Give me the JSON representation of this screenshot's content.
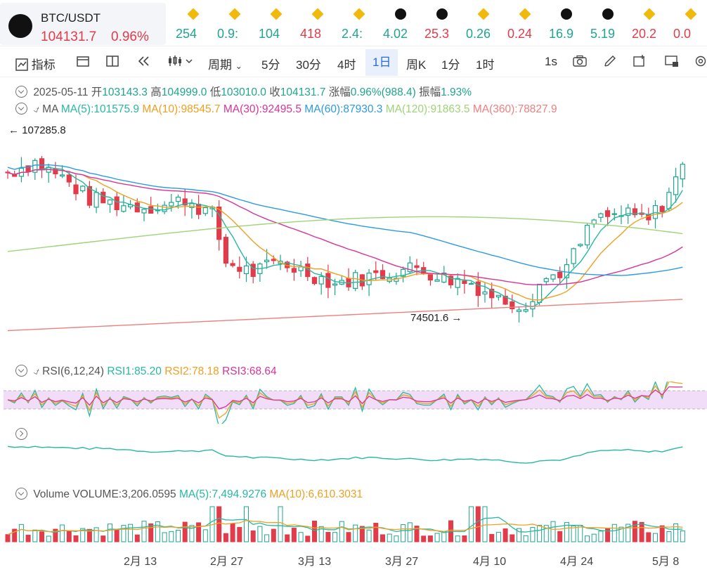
{
  "pair": {
    "symbol": "BTC/USDT",
    "price": "104131.7",
    "change": "0.96%"
  },
  "tickers": [
    {
      "icon": "bnb-icon",
      "value": "254",
      "color": "#1fa590"
    },
    {
      "icon": "bnb-icon",
      "value": "0.9:",
      "color": "#1fa590"
    },
    {
      "icon": "bnb-icon",
      "value": "104",
      "color": "#1fa590"
    },
    {
      "icon": "bnb-icon",
      "value": "418",
      "color": "#e23b4a"
    },
    {
      "icon": "bnb-icon",
      "value": "2.4:",
      "color": "#1fa590"
    },
    {
      "icon": "okx-icon",
      "value": "4.02",
      "color": "#1fa590"
    },
    {
      "icon": "okx-icon",
      "value": "25.3",
      "color": "#e23b4a"
    },
    {
      "icon": "bnb-icon",
      "value": "0.26",
      "color": "#1fa590"
    },
    {
      "icon": "bnb-icon",
      "value": "0.24",
      "color": "#e23b4a"
    },
    {
      "icon": "okx-icon",
      "value": "16.9",
      "color": "#1fa590"
    },
    {
      "icon": "okx-icon",
      "value": "5.19",
      "color": "#1fa590"
    },
    {
      "icon": "bnb-icon",
      "value": "20.2",
      "color": "#e23b4a"
    },
    {
      "icon": "bnb-icon",
      "value": "0.0",
      "color": "#e23b4a"
    }
  ],
  "toolbar": {
    "indicators": "指标",
    "period": "周期",
    "intervals": [
      "5分",
      "30分",
      "4时",
      "1日",
      "周K",
      "1分",
      "1时"
    ],
    "active_interval": "1日",
    "speed": "1s"
  },
  "info": {
    "date": "2025-05-11",
    "open_label": "开",
    "open": "103143.3",
    "high_label": "高",
    "high": "104999.0",
    "low_label": "低",
    "low": "103010.0",
    "close_label": "收",
    "close": "104131.7",
    "chg_label": "涨幅",
    "chg": "0.96%(988.4)",
    "amp_label": "振幅",
    "amp": "1.93%"
  },
  "ma": {
    "label": "MA",
    "items": [
      {
        "text": "MA(5):101575.9",
        "color": "#26b9a0"
      },
      {
        "text": "MA(10):98545.7",
        "color": "#f0a020"
      },
      {
        "text": "MA(30):92495.5",
        "color": "#d6359a"
      },
      {
        "text": "MA(60):87930.3",
        "color": "#2d9be0"
      },
      {
        "text": "MA(120):91863.5",
        "color": "#9ed479"
      },
      {
        "text": "MA(360):78827.9",
        "color": "#ef7f7f"
      }
    ]
  },
  "markers": {
    "high": "107285.8",
    "low": "74501.6"
  },
  "rsi": {
    "label": "RSI(6,12,24)",
    "items": [
      {
        "text": "RSI1:85.20",
        "color": "#26b9a0"
      },
      {
        "text": "RSI2:78.18",
        "color": "#f0a020"
      },
      {
        "text": "RSI3:68.64",
        "color": "#d6359a"
      }
    ]
  },
  "volume": {
    "label": "Volume",
    "vol": "VOLUME:3,206.0595",
    "items": [
      {
        "text": "MA(5):7,494.9276",
        "color": "#26b9a0"
      },
      {
        "text": "MA(10):6,610.3031",
        "color": "#f0a020"
      }
    ]
  },
  "xaxis": [
    "2月 13",
    "2月 27",
    "3月 13",
    "3月 27",
    "4月 10",
    "4月 24",
    "5月 8"
  ],
  "colors": {
    "up": "#1fa590",
    "down": "#e23b4a"
  }
}
